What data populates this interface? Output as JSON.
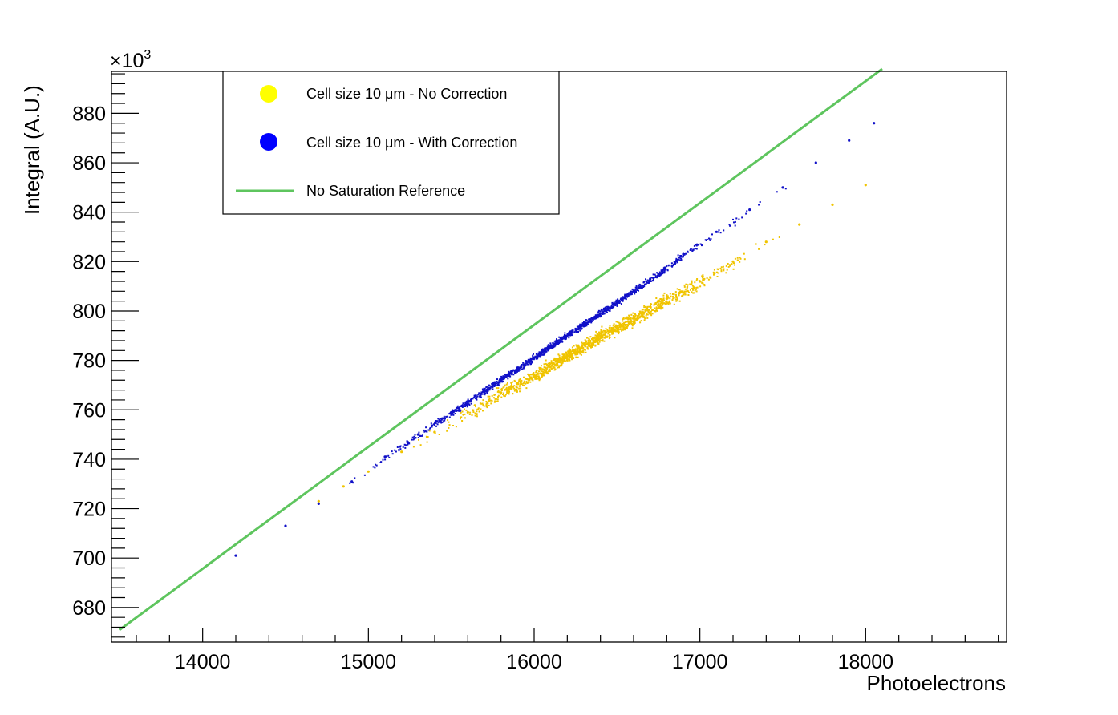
{
  "chart_data": {
    "type": "scatter",
    "xlabel": "Photoelectrons",
    "ylabel": "Integral (A.U.)",
    "y_multiplier_label": "×10",
    "y_multiplier_exponent": "3",
    "xlim": [
      13450,
      18850
    ],
    "ylim": [
      666,
      897
    ],
    "x_major_ticks": [
      14000,
      15000,
      16000,
      17000,
      18000
    ],
    "x_tick_labels": [
      "14000",
      "15000",
      "16000",
      "17000",
      "18000"
    ],
    "y_major_ticks": [
      680,
      700,
      720,
      740,
      760,
      780,
      800,
      820,
      840,
      860,
      880
    ],
    "y_tick_labels": [
      "680",
      "700",
      "720",
      "740",
      "760",
      "780",
      "800",
      "820",
      "840",
      "860",
      "880"
    ],
    "grid": false,
    "legend_position": "top-left",
    "series": [
      {
        "name": "Cell size 10 μm - No Correction",
        "kind": "points",
        "color": "#f0c400",
        "legend_color": "#ffff00",
        "x": [
          14700,
          14850,
          15000,
          15200,
          15400,
          15600,
          15800,
          16000,
          16200,
          16400,
          16600,
          16800,
          17000,
          17200,
          17400,
          17600,
          17800,
          18000
        ],
        "y": [
          723,
          729,
          735,
          743,
          751,
          759,
          767,
          774,
          782,
          790,
          797,
          805,
          812,
          820,
          828,
          835,
          843,
          851
        ]
      },
      {
        "name": "Cell size 10 μm - With Correction",
        "kind": "points",
        "color": "#1010c8",
        "legend_color": "#0000ff",
        "x": [
          14200,
          14500,
          14700,
          14900,
          15100,
          15300,
          15500,
          15700,
          15900,
          16100,
          16300,
          16500,
          16700,
          16900,
          17100,
          17300,
          17500,
          17700,
          17900,
          18050
        ],
        "y": [
          701,
          713,
          722,
          731,
          741,
          750,
          759,
          768,
          777,
          786,
          795,
          804,
          813,
          823,
          832,
          841,
          850,
          860,
          869,
          876
        ]
      },
      {
        "name": "No Saturation Reference",
        "kind": "line",
        "color": "#5ec55e",
        "x": [
          13500,
          18100
        ],
        "y": [
          671,
          898
        ]
      }
    ]
  }
}
